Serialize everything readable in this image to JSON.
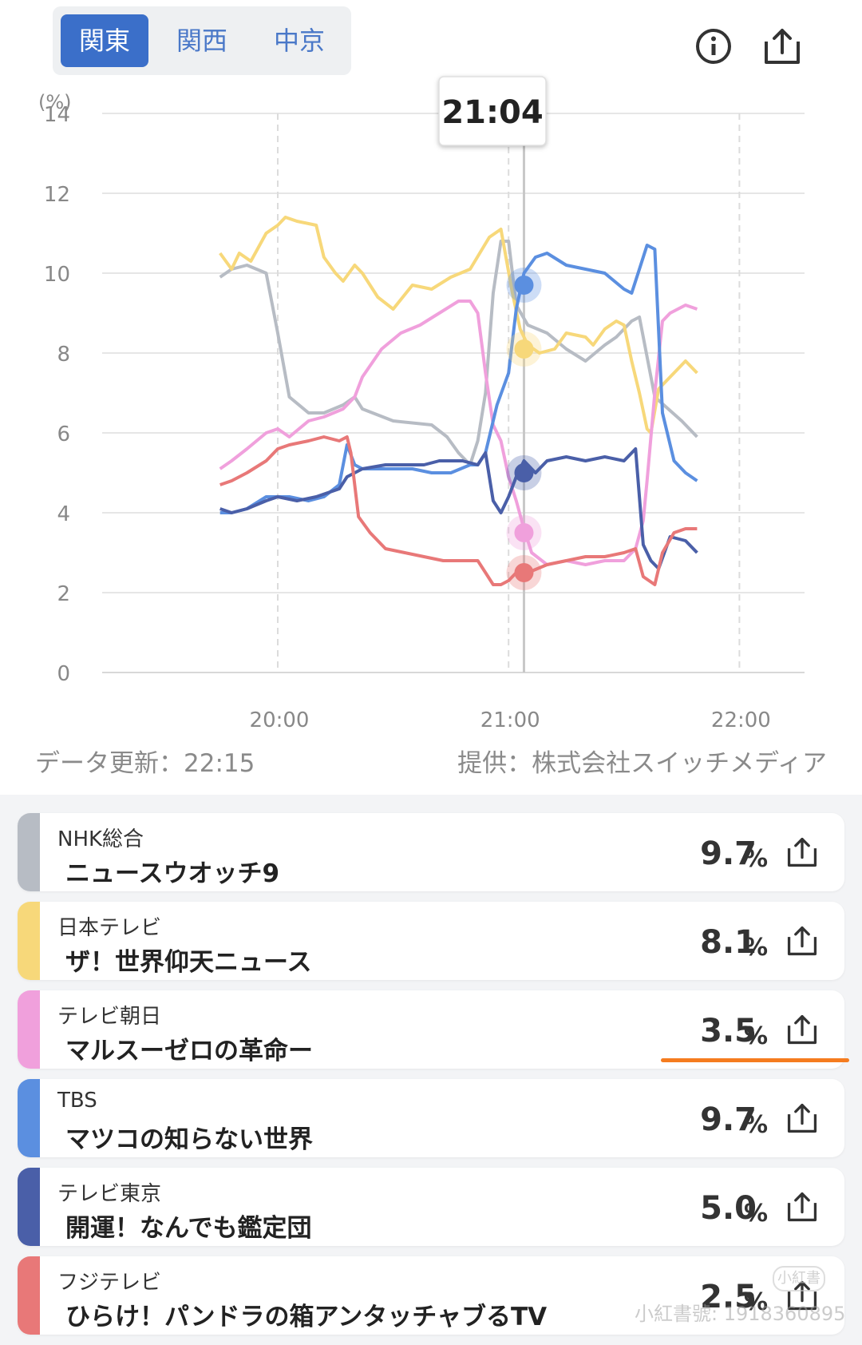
{
  "tabs": [
    {
      "label": "関東",
      "active": true
    },
    {
      "label": "関西",
      "active": false
    },
    {
      "label": "中京",
      "active": false
    }
  ],
  "icons": {
    "info": "info-icon",
    "share": "share-icon"
  },
  "chart_data": {
    "type": "line",
    "ylabel": "(%)",
    "ylim": [
      0,
      14
    ],
    "yticks": [
      "0",
      "2",
      "4",
      "6",
      "8",
      "10",
      "12",
      "14"
    ],
    "xticks": [
      "20:00",
      "21:00",
      "22:00"
    ],
    "x_range_minutes_after_19": [
      -15,
      89
    ],
    "grid": true,
    "cursor_time": "21:04",
    "series": [
      {
        "name": "NHK総合",
        "color": "#b7bcc4",
        "marker": 9.7,
        "points": [
          [
            -15,
            9.9
          ],
          [
            -12,
            10.1
          ],
          [
            -8,
            10.2
          ],
          [
            -3,
            10.0
          ],
          [
            0,
            8.5
          ],
          [
            3,
            6.9
          ],
          [
            8,
            6.5
          ],
          [
            12,
            6.5
          ],
          [
            17,
            6.7
          ],
          [
            20,
            6.9
          ],
          [
            22,
            6.6
          ],
          [
            30,
            6.3
          ],
          [
            40,
            6.2
          ],
          [
            44,
            5.9
          ],
          [
            47,
            5.5
          ],
          [
            50,
            5.2
          ],
          [
            52,
            5.8
          ],
          [
            54,
            7.0
          ],
          [
            56,
            9.5
          ],
          [
            58,
            10.8
          ],
          [
            60,
            10.8
          ],
          [
            62,
            9.2
          ],
          [
            65,
            8.7
          ],
          [
            70,
            8.5
          ],
          [
            75,
            8.1
          ],
          [
            80,
            7.8
          ],
          [
            85,
            8.2
          ],
          [
            88,
            8.4
          ],
          [
            92,
            8.8
          ],
          [
            94,
            8.9
          ],
          [
            98,
            6.9
          ],
          [
            105,
            6.3
          ],
          [
            109,
            5.9
          ]
        ]
      },
      {
        "name": "日本テレビ",
        "color": "#f7d87a",
        "marker": 8.1,
        "points": [
          [
            -15,
            10.5
          ],
          [
            -12,
            10.1
          ],
          [
            -10,
            10.5
          ],
          [
            -7,
            10.3
          ],
          [
            -3,
            11.0
          ],
          [
            0,
            11.2
          ],
          [
            2,
            11.4
          ],
          [
            5,
            11.3
          ],
          [
            10,
            11.2
          ],
          [
            12,
            10.4
          ],
          [
            15,
            10.0
          ],
          [
            17,
            9.8
          ],
          [
            20,
            10.2
          ],
          [
            22,
            10.0
          ],
          [
            26,
            9.4
          ],
          [
            30,
            9.1
          ],
          [
            35,
            9.7
          ],
          [
            40,
            9.6
          ],
          [
            45,
            9.9
          ],
          [
            50,
            10.1
          ],
          [
            55,
            10.9
          ],
          [
            58,
            11.1
          ],
          [
            61,
            9.5
          ],
          [
            63,
            8.6
          ],
          [
            65,
            8.2
          ],
          [
            68,
            8.0
          ],
          [
            72,
            8.1
          ],
          [
            75,
            8.5
          ],
          [
            80,
            8.4
          ],
          [
            82,
            8.2
          ],
          [
            85,
            8.6
          ],
          [
            88,
            8.8
          ],
          [
            90,
            8.7
          ],
          [
            92,
            7.8
          ],
          [
            94,
            7.0
          ],
          [
            96,
            6.1
          ],
          [
            97,
            6.0
          ],
          [
            99,
            7.1
          ],
          [
            102,
            7.4
          ],
          [
            106,
            7.8
          ],
          [
            109,
            7.5
          ]
        ]
      },
      {
        "name": "テレビ朝日",
        "color": "#f0a0dc",
        "marker": 3.5,
        "points": [
          [
            -15,
            5.1
          ],
          [
            -12,
            5.3
          ],
          [
            -8,
            5.6
          ],
          [
            -3,
            6.0
          ],
          [
            0,
            6.1
          ],
          [
            3,
            5.9
          ],
          [
            8,
            6.3
          ],
          [
            12,
            6.4
          ],
          [
            17,
            6.6
          ],
          [
            20,
            6.9
          ],
          [
            22,
            7.4
          ],
          [
            27,
            8.1
          ],
          [
            32,
            8.5
          ],
          [
            37,
            8.7
          ],
          [
            42,
            9.0
          ],
          [
            47,
            9.3
          ],
          [
            50,
            9.3
          ],
          [
            52,
            9.0
          ],
          [
            54,
            7.5
          ],
          [
            56,
            6.2
          ],
          [
            58,
            5.8
          ],
          [
            60,
            4.9
          ],
          [
            62,
            4.3
          ],
          [
            64,
            3.6
          ],
          [
            66,
            3.0
          ],
          [
            70,
            2.7
          ],
          [
            75,
            2.8
          ],
          [
            80,
            2.7
          ],
          [
            85,
            2.8
          ],
          [
            90,
            2.8
          ],
          [
            93,
            3.1
          ],
          [
            95,
            3.8
          ],
          [
            96,
            4.8
          ],
          [
            98,
            7.0
          ],
          [
            100,
            8.8
          ],
          [
            102,
            9.0
          ],
          [
            106,
            9.2
          ],
          [
            109,
            9.1
          ]
        ]
      },
      {
        "name": "TBS",
        "color": "#5b8fe0",
        "marker": 9.7,
        "points": [
          [
            -15,
            4.0
          ],
          [
            -12,
            4.0
          ],
          [
            -8,
            4.1
          ],
          [
            -3,
            4.4
          ],
          [
            0,
            4.4
          ],
          [
            3,
            4.4
          ],
          [
            8,
            4.3
          ],
          [
            12,
            4.4
          ],
          [
            16,
            4.7
          ],
          [
            18,
            5.7
          ],
          [
            20,
            5.2
          ],
          [
            22,
            5.1
          ],
          [
            30,
            5.1
          ],
          [
            35,
            5.1
          ],
          [
            40,
            5.0
          ],
          [
            45,
            5.0
          ],
          [
            50,
            5.2
          ],
          [
            52,
            5.2
          ],
          [
            54,
            5.5
          ],
          [
            57,
            6.7
          ],
          [
            60,
            7.5
          ],
          [
            62,
            9.1
          ],
          [
            64,
            10.0
          ],
          [
            67,
            10.4
          ],
          [
            70,
            10.5
          ],
          [
            75,
            10.2
          ],
          [
            80,
            10.1
          ],
          [
            85,
            10.0
          ],
          [
            90,
            9.6
          ],
          [
            92,
            9.5
          ],
          [
            94,
            10.1
          ],
          [
            96,
            10.7
          ],
          [
            98,
            10.6
          ],
          [
            100,
            6.5
          ],
          [
            103,
            5.3
          ],
          [
            106,
            5.0
          ],
          [
            109,
            4.8
          ]
        ]
      },
      {
        "name": "テレビ東京",
        "color": "#4a5fa8",
        "marker": 5.0,
        "points": [
          [
            -15,
            4.1
          ],
          [
            -12,
            4.0
          ],
          [
            -8,
            4.1
          ],
          [
            -3,
            4.3
          ],
          [
            0,
            4.4
          ],
          [
            5,
            4.3
          ],
          [
            10,
            4.4
          ],
          [
            16,
            4.6
          ],
          [
            18,
            4.9
          ],
          [
            22,
            5.1
          ],
          [
            28,
            5.2
          ],
          [
            32,
            5.2
          ],
          [
            38,
            5.2
          ],
          [
            42,
            5.3
          ],
          [
            48,
            5.3
          ],
          [
            52,
            5.2
          ],
          [
            54,
            5.5
          ],
          [
            56,
            4.3
          ],
          [
            58,
            4.0
          ],
          [
            60,
            4.4
          ],
          [
            62,
            4.9
          ],
          [
            64,
            5.3
          ],
          [
            67,
            5.0
          ],
          [
            70,
            5.3
          ],
          [
            75,
            5.4
          ],
          [
            80,
            5.3
          ],
          [
            85,
            5.4
          ],
          [
            90,
            5.3
          ],
          [
            93,
            5.6
          ],
          [
            95,
            3.2
          ],
          [
            97,
            2.8
          ],
          [
            99,
            2.6
          ],
          [
            102,
            3.4
          ],
          [
            106,
            3.3
          ],
          [
            109,
            3.0
          ]
        ]
      },
      {
        "name": "フジテレビ",
        "color": "#e87878",
        "marker": 2.5,
        "points": [
          [
            -15,
            4.7
          ],
          [
            -12,
            4.8
          ],
          [
            -8,
            5.0
          ],
          [
            -3,
            5.3
          ],
          [
            0,
            5.6
          ],
          [
            3,
            5.7
          ],
          [
            8,
            5.8
          ],
          [
            12,
            5.9
          ],
          [
            16,
            5.8
          ],
          [
            18,
            5.9
          ],
          [
            19,
            5.5
          ],
          [
            21,
            3.9
          ],
          [
            24,
            3.5
          ],
          [
            28,
            3.1
          ],
          [
            33,
            3.0
          ],
          [
            38,
            2.9
          ],
          [
            43,
            2.8
          ],
          [
            48,
            2.8
          ],
          [
            52,
            2.8
          ],
          [
            54,
            2.5
          ],
          [
            56,
            2.2
          ],
          [
            58,
            2.2
          ],
          [
            60,
            2.3
          ],
          [
            62,
            2.5
          ],
          [
            65,
            2.5
          ],
          [
            70,
            2.7
          ],
          [
            75,
            2.8
          ],
          [
            80,
            2.9
          ],
          [
            85,
            2.9
          ],
          [
            90,
            3.0
          ],
          [
            93,
            3.1
          ],
          [
            95,
            2.4
          ],
          [
            98,
            2.2
          ],
          [
            100,
            3.0
          ],
          [
            103,
            3.5
          ],
          [
            106,
            3.6
          ],
          [
            109,
            3.6
          ]
        ]
      }
    ]
  },
  "footer": {
    "updated": "データ更新：22:15",
    "provider": "提供：株式会社スイッチメディア"
  },
  "stations": [
    {
      "station": "NHK総合",
      "program": "ニュースウオッチ9",
      "value": "9.7",
      "unit": "%",
      "color": "#b7bcc4"
    },
    {
      "station": "日本テレビ",
      "program": "ザ！世界仰天ニュース",
      "value": "8.1",
      "unit": "%",
      "color": "#f7d87a"
    },
    {
      "station": "テレビ朝日",
      "program": "マルスーゼロの革命ー",
      "value": "3.5",
      "unit": "%",
      "color": "#f0a0dc"
    },
    {
      "station": "TBS",
      "program": "マツコの知らない世界",
      "value": "9.7",
      "unit": "%",
      "color": "#5b8fe0"
    },
    {
      "station": "テレビ東京",
      "program": "開運！なんでも鑑定団",
      "value": "5.0",
      "unit": "%",
      "color": "#4a5fa8"
    },
    {
      "station": "フジテレビ",
      "program": "ひらけ！パンドラの箱アンタッチャブるTV",
      "value": "2.5",
      "unit": "%",
      "color": "#e87878"
    }
  ],
  "watermark": {
    "text": "小紅書號: 1918360895",
    "badge": "小紅書"
  }
}
